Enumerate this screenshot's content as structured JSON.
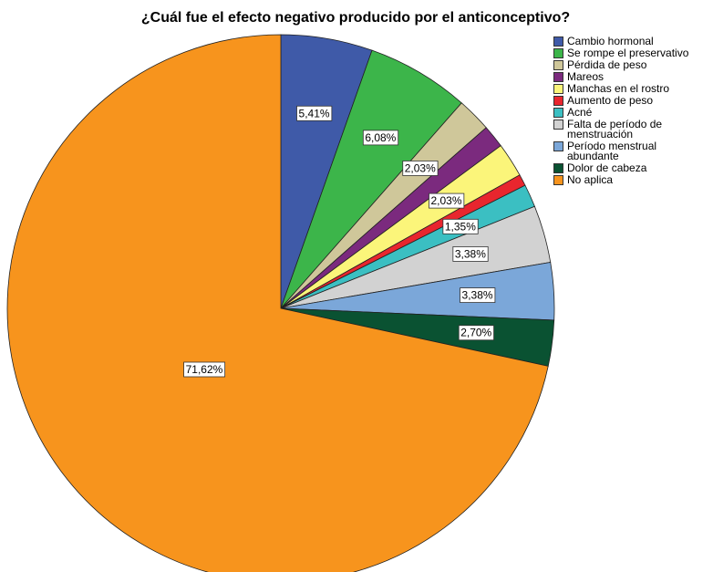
{
  "chart_data": {
    "type": "pie",
    "title": "¿Cuál fue el efecto negativo producido por el anticonceptivo?",
    "categories": [
      "Cambio hormonal",
      "Se rompe el preservativo",
      "Pérdida de peso",
      "Mareos",
      "Manchas en el rostro",
      "Aumento de peso",
      "Acné",
      "Falta de período de menstruación",
      "Período menstrual abundante",
      "Dolor de cabeza",
      "No aplica"
    ],
    "values": [
      5.41,
      6.08,
      2.03,
      1.35,
      2.03,
      0.68,
      1.35,
      3.38,
      3.38,
      2.7,
      71.62
    ],
    "value_labels": [
      "5,41%",
      "6,08%",
      "2,03%",
      null,
      "2,03%",
      null,
      "1,35%",
      "3,38%",
      "3,38%",
      "2,70%",
      "71,62%"
    ],
    "colors": [
      "#3f5aa8",
      "#3cb54a",
      "#cfc79a",
      "#7b2a7e",
      "#fbf57a",
      "#e8262e",
      "#3bbfc2",
      "#d2d2d2",
      "#7ba7d9",
      "#0a5232",
      "#f7941d"
    ],
    "legend": "top-right"
  }
}
